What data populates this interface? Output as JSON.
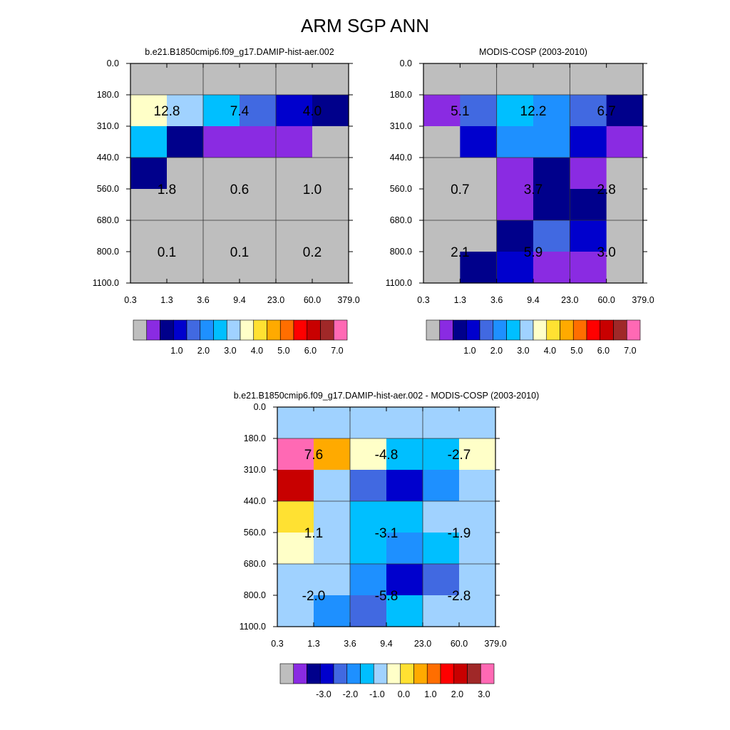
{
  "figure_title": "ARM SGP ANN",
  "chart_data": [
    {
      "type": "heatmap",
      "title": "b.e21.B1850cmip6.f09_g17.DAMIP-hist-aer.002",
      "x_tick_labels": [
        "0.3",
        "1.3",
        "3.6",
        "9.4",
        "23.0",
        "60.0",
        "379.0"
      ],
      "y_tick_labels": [
        "0.0",
        "180.0",
        "310.0",
        "440.0",
        "560.0",
        "680.0",
        "800.0",
        "1100.0"
      ],
      "cells": [
        [
          "c0",
          "c0",
          "c0",
          "c0",
          "c0",
          "c0"
        ],
        [
          "c10",
          "c9",
          "c8",
          "c5",
          "c4",
          "c3"
        ],
        [
          "c8",
          "c3",
          "c2",
          "c2",
          "c2",
          "c0"
        ],
        [
          "c3",
          "c0",
          "c0",
          "c0",
          "c0",
          "c0"
        ],
        [
          "c0",
          "c0",
          "c0",
          "c0",
          "c0",
          "c0"
        ],
        [
          "c0",
          "c0",
          "c0",
          "c0",
          "c0",
          "c0"
        ],
        [
          "c0",
          "c0",
          "c0",
          "c0",
          "c0",
          "c0"
        ]
      ],
      "values": [
        [
          "12.8",
          "7.4",
          "4.0"
        ],
        [
          "1.8",
          "0.6",
          "1.0"
        ],
        [
          "0.1",
          "0.1",
          "0.2"
        ]
      ],
      "colorbar_labels": [
        "1.0",
        "2.0",
        "3.0",
        "4.0",
        "5.0",
        "6.0",
        "7.0"
      ]
    },
    {
      "type": "heatmap",
      "title": "MODIS-COSP (2003-2010)",
      "x_tick_labels": [
        "0.3",
        "1.3",
        "3.6",
        "9.4",
        "23.0",
        "60.0",
        "379.0"
      ],
      "y_tick_labels": [
        "0.0",
        "180.0",
        "310.0",
        "440.0",
        "560.0",
        "680.0",
        "800.0",
        "1100.0"
      ],
      "cells": [
        [
          "c0",
          "c0",
          "c0",
          "c0",
          "c0",
          "c0"
        ],
        [
          "c2",
          "c5",
          "c8",
          "c7",
          "c5",
          "c3"
        ],
        [
          "c0",
          "c4",
          "c7",
          "c7",
          "c4",
          "c2"
        ],
        [
          "c0",
          "c0",
          "c2",
          "c3",
          "c2",
          "c0"
        ],
        [
          "c0",
          "c0",
          "c2",
          "c3",
          "c3",
          "c0"
        ],
        [
          "c0",
          "c0",
          "c3",
          "c5",
          "c4",
          "c0"
        ],
        [
          "c0",
          "c3",
          "c4",
          "c2",
          "c2",
          "c0"
        ]
      ],
      "values": [
        [
          "5.1",
          "12.2",
          "6.7"
        ],
        [
          "0.7",
          "3.7",
          "2.8"
        ],
        [
          "2.1",
          "5.9",
          "3.0"
        ]
      ],
      "colorbar_labels": [
        "1.0",
        "2.0",
        "3.0",
        "4.0",
        "5.0",
        "6.0",
        "7.0"
      ]
    },
    {
      "type": "heatmap",
      "title": "b.e21.B1850cmip6.f09_g17.DAMIP-hist-aer.002 - MODIS-COSP (2003-2010)",
      "x_tick_labels": [
        "0.3",
        "1.3",
        "3.6",
        "9.4",
        "23.0",
        "60.0",
        "379.0"
      ],
      "y_tick_labels": [
        "0.0",
        "180.0",
        "310.0",
        "440.0",
        "560.0",
        "680.0",
        "800.0",
        "1100.0"
      ],
      "cells": [
        [
          "c9",
          "c9",
          "c9",
          "c9",
          "c9",
          "c9"
        ],
        [
          "c18",
          "c12",
          "c10",
          "c8",
          "c8",
          "c10"
        ],
        [
          "c16",
          "c9",
          "c6",
          "c4",
          "c7",
          "c9"
        ],
        [
          "c11",
          "c9",
          "c8",
          "c8",
          "c9",
          "c9"
        ],
        [
          "c10",
          "c9",
          "c8",
          "c7",
          "c8",
          "c9"
        ],
        [
          "c9",
          "c9",
          "c7",
          "c4",
          "c6",
          "c9"
        ],
        [
          "c9",
          "c7",
          "c6",
          "c8",
          "c9",
          "c9"
        ]
      ],
      "values": [
        [
          "7.6",
          "-4.8",
          "-2.7"
        ],
        [
          "1.1",
          "-3.1",
          "-1.9"
        ],
        [
          "-2.0",
          "-5.8",
          "-2.8"
        ]
      ],
      "colorbar_labels": [
        "-3.0",
        "-2.0",
        "-1.0",
        "0.0",
        "1.0",
        "2.0",
        "3.0"
      ]
    }
  ],
  "colors": {
    "palette": [
      "#BEBEBE",
      "#8A2BE2",
      "#00008B",
      "#0000CD",
      "#4169E1",
      "#1E90FF",
      "#00BFFF",
      "#A0D2FF",
      "#FFFFC8",
      "#FFE132",
      "#FFAA00",
      "#FF6E00",
      "#FF0000",
      "#C80000",
      "#A02828",
      "#FF69B4"
    ],
    "cell_colors": {
      "c0": "#BEBEBE",
      "c2": "#8A2BE2",
      "c3": "#00008B",
      "c4": "#0000CD",
      "c5": "#4169E1",
      "c6": "#4169E1",
      "c7": "#1E90FF",
      "c8": "#00BFFF",
      "c9": "#A0D2FF",
      "c10": "#FFFFC8",
      "c11": "#FFE132",
      "c12": "#FFAA00",
      "c16": "#C80000",
      "c18": "#FF69B4"
    }
  }
}
